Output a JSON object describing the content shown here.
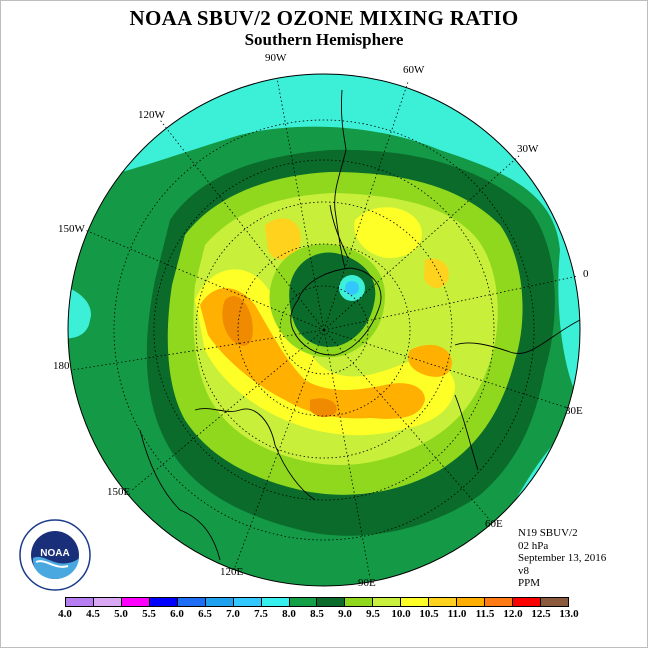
{
  "header": {
    "title": "NOAA SBUV/2 OZONE MIXING RATIO",
    "subtitle": "Southern Hemisphere"
  },
  "longitude_labels": {
    "w90": "90W",
    "w60": "60W",
    "w30": "30W",
    "e0": "0",
    "e30": "30E",
    "e60": "60E",
    "e90": "90E",
    "e120": "120E",
    "e150": "150E",
    "lon180": "180",
    "w150": "150W",
    "w120": "120W"
  },
  "info": {
    "instrument": "N19 SBUV/2",
    "level": "02 hPa",
    "date": "September 13, 2016",
    "version": "v8",
    "units": "PPM"
  },
  "colorbar": {
    "colors": [
      "#b67ef0",
      "#d9a8f3",
      "#ff00ff",
      "#d300d3",
      "#0000ff",
      "#1e6ef5",
      "#1ea2ef",
      "#32c8ff",
      "#37f0ee",
      "#14a046",
      "#0a7a32",
      "#1d6b2a",
      "#96d81c",
      "#c8f03c",
      "#ffff28",
      "#ffd21e",
      "#ffae00",
      "#ff7a14",
      "#ff1e14",
      "#ff0000",
      "#8b5a3c",
      "#7a4b2f"
    ],
    "ticks": [
      "4.0",
      "4.5",
      "5.0",
      "5.5",
      "6.0",
      "6.5",
      "7.0",
      "7.5",
      "8.0",
      "8.5",
      "9.0",
      "9.5",
      "10.0",
      "10.5",
      "11.0",
      "11.5",
      "12.0",
      "12.5",
      "13.0"
    ]
  },
  "logo": {
    "text": "NOAA",
    "ring": "NATIONAL OCEANIC AND ATMOSPHERIC ADMINISTRATION · U.S. DEPARTMENT OF COMMERCE"
  }
}
